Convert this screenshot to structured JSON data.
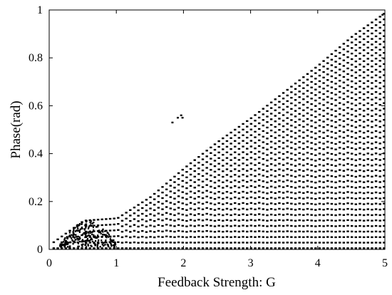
{
  "chart_data": {
    "type": "scatter",
    "title": "",
    "xlabel": "Feedback Strength: G",
    "ylabel": "Phase(rad)",
    "xlim": [
      0,
      5
    ],
    "ylim": [
      0,
      1
    ],
    "xticks": [
      "0",
      "1",
      "2",
      "3",
      "4",
      "5"
    ],
    "yticks": [
      "0",
      "0.2",
      "0.4",
      "0.6",
      "0.8",
      "1"
    ],
    "grid": false,
    "legend": "none",
    "marker_color": "#000000",
    "series": [
      {
        "description_free": true,
        "envelope_G": [
          0.0,
          0.5,
          1.0,
          1.5,
          2.0,
          2.5,
          3.0,
          3.5,
          4.0,
          4.5,
          5.0
        ],
        "envelope_phase_max": [
          0.02,
          0.12,
          0.13,
          0.22,
          0.34,
          0.45,
          0.55,
          0.66,
          0.77,
          0.89,
          0.99
        ],
        "branch_step": 0.023,
        "lower_phase": 0.005,
        "low_G_cluster": {
          "G": [
            0.15,
            1.0
          ],
          "phase": [
            0.02,
            0.12
          ]
        },
        "outliers": [
          {
            "x": 1.82,
            "y": 0.53
          },
          {
            "x": 1.9,
            "y": 0.55
          },
          {
            "x": 1.95,
            "y": 0.56
          },
          {
            "x": 1.97,
            "y": 0.55
          },
          {
            "x": 4.95,
            "y": 0.98
          }
        ]
      }
    ]
  }
}
